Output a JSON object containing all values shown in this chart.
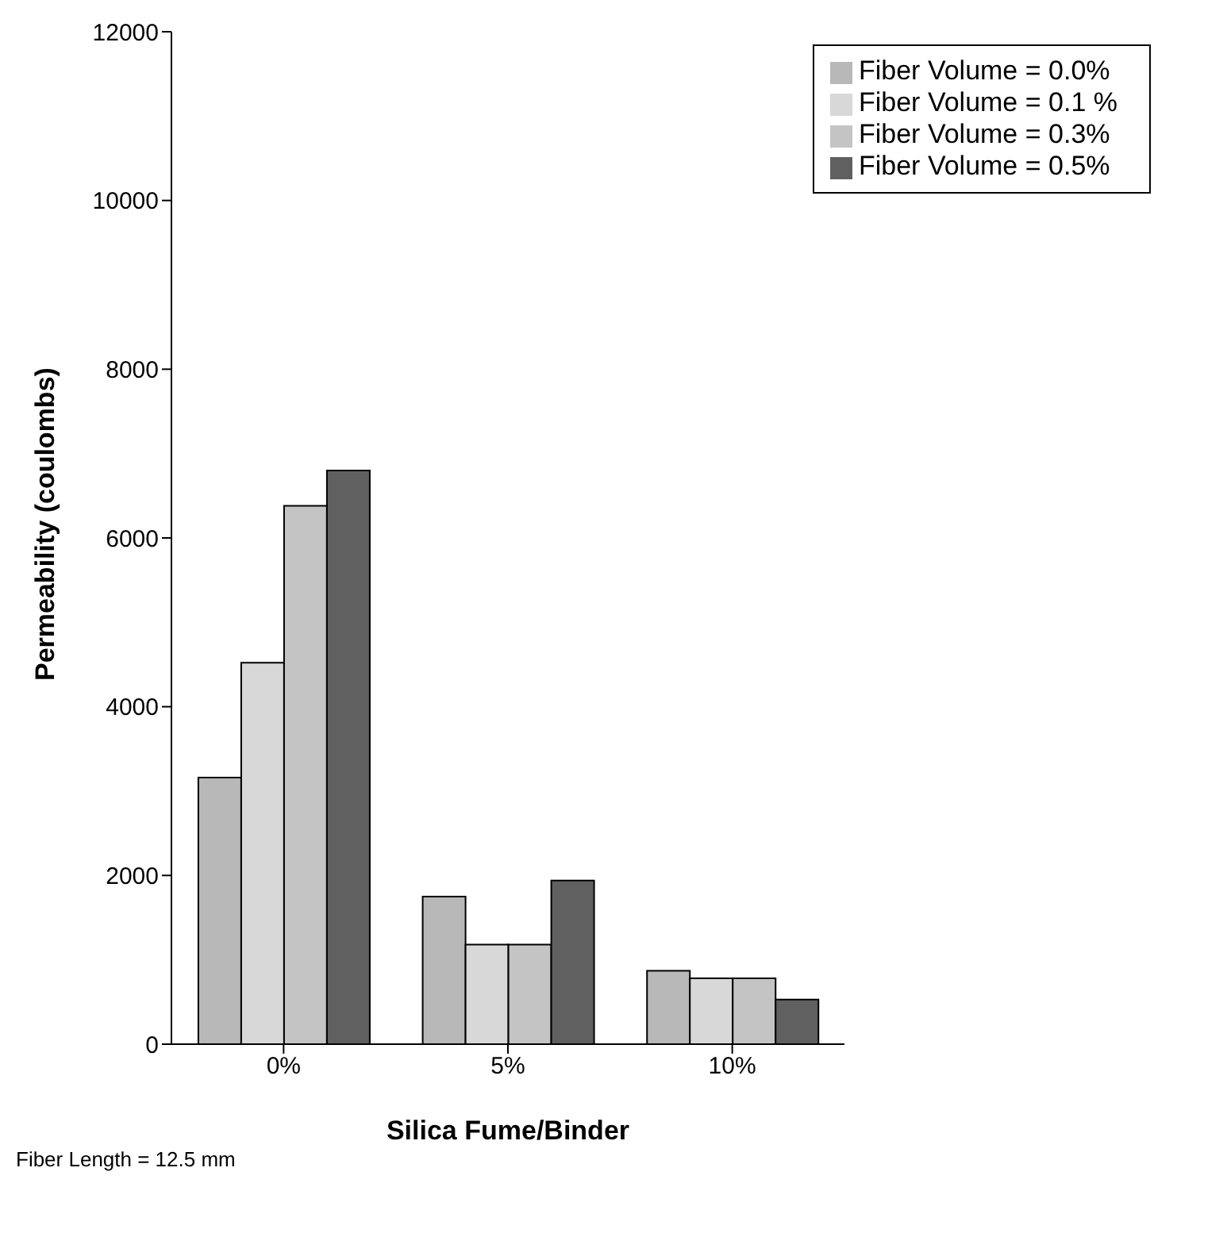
{
  "chart_data": {
    "type": "bar",
    "xlabel": "Silica Fume/Binder",
    "ylabel": "Permeability (coulombs)",
    "categories": [
      "0%",
      "5%",
      "10%"
    ],
    "series": [
      {
        "name": "Fiber Volume = 0.0%",
        "color": "#b8b8b8",
        "values": [
          3160,
          1750,
          870
        ]
      },
      {
        "name": "Fiber Volume = 0.1 %",
        "color": "#d8d8d8",
        "values": [
          4520,
          1180,
          780
        ]
      },
      {
        "name": "Fiber Volume = 0.3%",
        "color": "#c4c4c4",
        "values": [
          6380,
          1180,
          780
        ]
      },
      {
        "name": "Fiber Volume = 0.5%",
        "color": "#606060",
        "values": [
          6800,
          1940,
          530
        ]
      }
    ],
    "ylim": [
      0,
      12000
    ],
    "yticks": [
      0,
      2000,
      4000,
      6000,
      8000,
      10000,
      12000
    ],
    "grid": false,
    "legend": "top right",
    "annotations": [
      "Fiber Length = 12.5 mm"
    ]
  }
}
